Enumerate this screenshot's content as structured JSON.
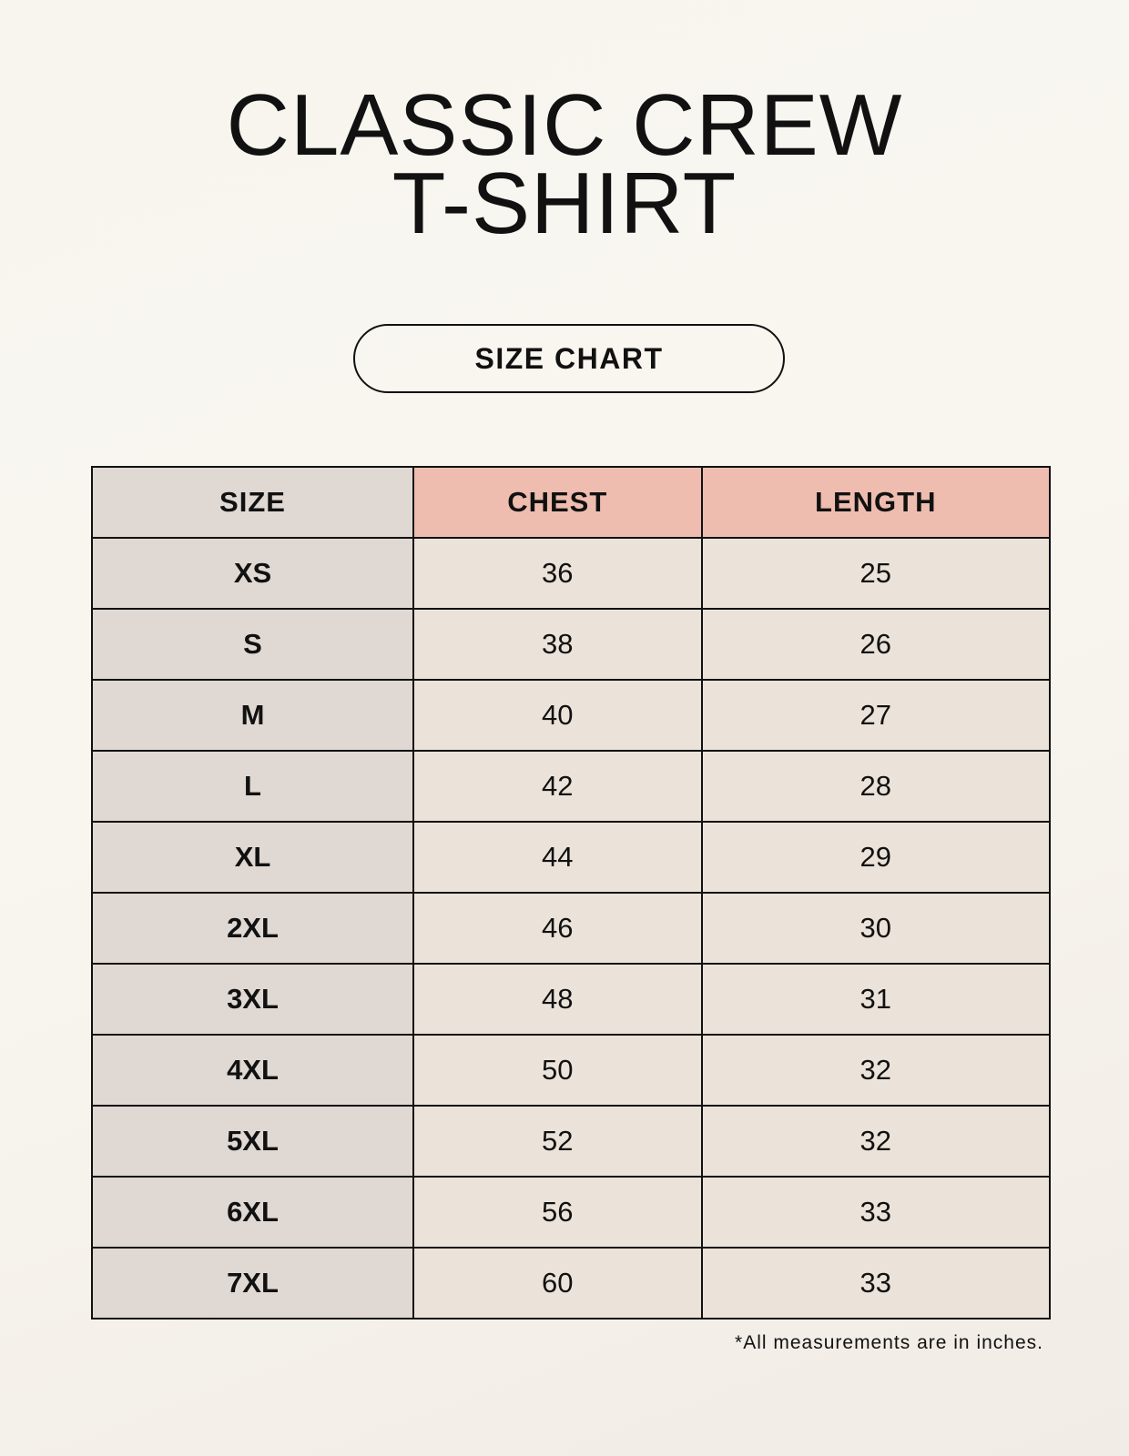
{
  "title_line1": "CLASSIC CREW",
  "title_line2": "T-SHIRT",
  "badge": "SIZE CHART",
  "table": {
    "headers": [
      "SIZE",
      "CHEST",
      "LENGTH"
    ],
    "rows": [
      [
        "XS",
        "36",
        "25"
      ],
      [
        "S",
        "38",
        "26"
      ],
      [
        "M",
        "40",
        "27"
      ],
      [
        "L",
        "42",
        "28"
      ],
      [
        "XL",
        "44",
        "29"
      ],
      [
        "2XL",
        "46",
        "30"
      ],
      [
        "3XL",
        "48",
        "31"
      ],
      [
        "4XL",
        "50",
        "32"
      ],
      [
        "5XL",
        "52",
        "32"
      ],
      [
        "6XL",
        "56",
        "33"
      ],
      [
        "7XL",
        "60",
        "33"
      ]
    ]
  },
  "note": "*All measurements are in inches.",
  "colors": {
    "size_column": "#e0d8d2",
    "measure_header": "#eebdaf",
    "cell": "#ebe3d9"
  }
}
